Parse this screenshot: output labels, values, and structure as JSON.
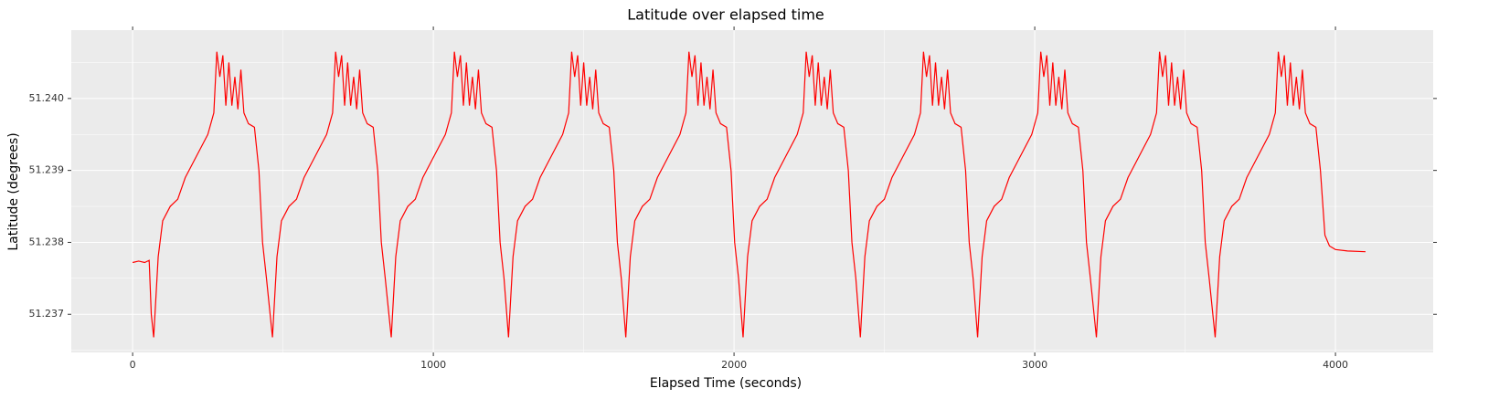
{
  "chart_data": {
    "type": "line",
    "title": "Latitude over elapsed time",
    "x_label": "Elapsed Time (seconds)",
    "y_label": "Latitude (degrees)",
    "xlim": [
      -204,
      4325
    ],
    "ylim": [
      51.23647,
      51.24095
    ],
    "xticks": [
      0,
      1000,
      2000,
      3000,
      4000
    ],
    "yticks": [
      51.237,
      51.238,
      51.239,
      {
        "value": 51.24,
        "label": "51.240"
      }
    ],
    "xminor": [
      500,
      1500,
      2500,
      3500
    ],
    "yminor": [
      51.2365,
      51.2375,
      51.2385,
      51.2395,
      51.2405
    ],
    "grid": true,
    "series": [
      {
        "name": "Latitude",
        "color": "#ff0000",
        "x": [
          0,
          20,
          40,
          55,
          62,
          70,
          85,
          100,
          125,
          150,
          175,
          200,
          225,
          250,
          270,
          280,
          290,
          300,
          310,
          320,
          330,
          340,
          350,
          360,
          370,
          385,
          405,
          420,
          432,
          445,
          465,
          480,
          495,
          520,
          545,
          570,
          595,
          620,
          645,
          665,
          675,
          685,
          695,
          705,
          715,
          725,
          735,
          745,
          755,
          765,
          780,
          800,
          815,
          827,
          840,
          860,
          875,
          890,
          915,
          940,
          965,
          990,
          1015,
          1040,
          1060,
          1070,
          1080,
          1090,
          1100,
          1110,
          1120,
          1130,
          1140,
          1150,
          1160,
          1175,
          1195,
          1210,
          1222,
          1235,
          1250,
          1265,
          1280,
          1305,
          1330,
          1355,
          1380,
          1405,
          1430,
          1450,
          1460,
          1470,
          1480,
          1490,
          1500,
          1510,
          1520,
          1530,
          1540,
          1550,
          1565,
          1585,
          1600,
          1612,
          1625,
          1640,
          1655,
          1670,
          1695,
          1720,
          1745,
          1770,
          1795,
          1820,
          1840,
          1850,
          1860,
          1870,
          1880,
          1890,
          1900,
          1910,
          1920,
          1930,
          1940,
          1955,
          1975,
          1990,
          2002,
          2015,
          2030,
          2045,
          2060,
          2085,
          2110,
          2135,
          2160,
          2185,
          2210,
          2230,
          2240,
          2250,
          2260,
          2270,
          2280,
          2290,
          2300,
          2310,
          2320,
          2330,
          2345,
          2365,
          2380,
          2392,
          2405,
          2420,
          2435,
          2450,
          2475,
          2500,
          2525,
          2550,
          2575,
          2600,
          2620,
          2630,
          2640,
          2650,
          2660,
          2670,
          2680,
          2690,
          2700,
          2710,
          2720,
          2735,
          2755,
          2770,
          2782,
          2795,
          2810,
          2825,
          2840,
          2865,
          2890,
          2915,
          2940,
          2965,
          2990,
          3010,
          3020,
          3030,
          3040,
          3050,
          3060,
          3070,
          3080,
          3090,
          3100,
          3110,
          3125,
          3145,
          3160,
          3172,
          3185,
          3205,
          3220,
          3235,
          3260,
          3285,
          3310,
          3335,
          3360,
          3385,
          3405,
          3415,
          3425,
          3435,
          3445,
          3455,
          3465,
          3475,
          3485,
          3495,
          3505,
          3520,
          3540,
          3555,
          3567,
          3580,
          3600,
          3615,
          3630,
          3655,
          3680,
          3705,
          3730,
          3755,
          3780,
          3800,
          3810,
          3820,
          3830,
          3840,
          3850,
          3860,
          3870,
          3880,
          3890,
          3900,
          3915,
          3935,
          3950,
          3965,
          3980,
          4000,
          4040,
          4100
        ],
        "values": [
          51.23772,
          51.23774,
          51.23772,
          51.23775,
          51.237,
          51.23668,
          51.2378,
          51.2383,
          51.2385,
          51.2386,
          51.2389,
          51.2391,
          51.2393,
          51.2395,
          51.2398,
          51.24065,
          51.2403,
          51.2406,
          51.2399,
          51.2405,
          51.2399,
          51.2403,
          51.23985,
          51.2404,
          51.2398,
          51.23965,
          51.2396,
          51.239,
          51.238,
          51.2375,
          51.23668,
          51.2378,
          51.2383,
          51.2385,
          51.2386,
          51.2389,
          51.2391,
          51.2393,
          51.2395,
          51.2398,
          51.24065,
          51.2403,
          51.2406,
          51.2399,
          51.2405,
          51.2399,
          51.2403,
          51.23985,
          51.2404,
          51.2398,
          51.23965,
          51.2396,
          51.239,
          51.238,
          51.2375,
          51.23668,
          51.2378,
          51.2383,
          51.2385,
          51.2386,
          51.2389,
          51.2391,
          51.2393,
          51.2395,
          51.2398,
          51.24065,
          51.2403,
          51.2406,
          51.2399,
          51.2405,
          51.2399,
          51.2403,
          51.23985,
          51.2404,
          51.2398,
          51.23965,
          51.2396,
          51.239,
          51.238,
          51.2375,
          51.23668,
          51.2378,
          51.2383,
          51.2385,
          51.2386,
          51.2389,
          51.2391,
          51.2393,
          51.2395,
          51.2398,
          51.24065,
          51.2403,
          51.2406,
          51.2399,
          51.2405,
          51.2399,
          51.2403,
          51.23985,
          51.2404,
          51.2398,
          51.23965,
          51.2396,
          51.239,
          51.238,
          51.2375,
          51.23668,
          51.2378,
          51.2383,
          51.2385,
          51.2386,
          51.2389,
          51.2391,
          51.2393,
          51.2395,
          51.2398,
          51.24065,
          51.2403,
          51.2406,
          51.2399,
          51.2405,
          51.2399,
          51.2403,
          51.23985,
          51.2404,
          51.2398,
          51.23965,
          51.2396,
          51.239,
          51.238,
          51.2375,
          51.23668,
          51.2378,
          51.2383,
          51.2385,
          51.2386,
          51.2389,
          51.2391,
          51.2393,
          51.2395,
          51.2398,
          51.24065,
          51.2403,
          51.2406,
          51.2399,
          51.2405,
          51.2399,
          51.2403,
          51.23985,
          51.2404,
          51.2398,
          51.23965,
          51.2396,
          51.239,
          51.238,
          51.2375,
          51.23668,
          51.2378,
          51.2383,
          51.2385,
          51.2386,
          51.2389,
          51.2391,
          51.2393,
          51.2395,
          51.2398,
          51.24065,
          51.2403,
          51.2406,
          51.2399,
          51.2405,
          51.2399,
          51.2403,
          51.23985,
          51.2404,
          51.2398,
          51.23965,
          51.2396,
          51.239,
          51.238,
          51.2375,
          51.23668,
          51.2378,
          51.2383,
          51.2385,
          51.2386,
          51.2389,
          51.2391,
          51.2393,
          51.2395,
          51.2398,
          51.24065,
          51.2403,
          51.2406,
          51.2399,
          51.2405,
          51.2399,
          51.2403,
          51.23985,
          51.2404,
          51.2398,
          51.23965,
          51.2396,
          51.239,
          51.238,
          51.2375,
          51.23668,
          51.2378,
          51.2383,
          51.2385,
          51.2386,
          51.2389,
          51.2391,
          51.2393,
          51.2395,
          51.2398,
          51.24065,
          51.2403,
          51.2406,
          51.2399,
          51.2405,
          51.2399,
          51.2403,
          51.23985,
          51.2404,
          51.2398,
          51.23965,
          51.2396,
          51.239,
          51.238,
          51.2375,
          51.23668,
          51.2378,
          51.2383,
          51.2385,
          51.2386,
          51.2389,
          51.2391,
          51.2393,
          51.2395,
          51.2398,
          51.24065,
          51.2403,
          51.2406,
          51.2399,
          51.2405,
          51.2399,
          51.2403,
          51.23985,
          51.2404,
          51.2398,
          51.23965,
          51.2396,
          51.239,
          51.2381,
          51.23795,
          51.2379,
          51.23788,
          51.23787
        ]
      }
    ]
  }
}
